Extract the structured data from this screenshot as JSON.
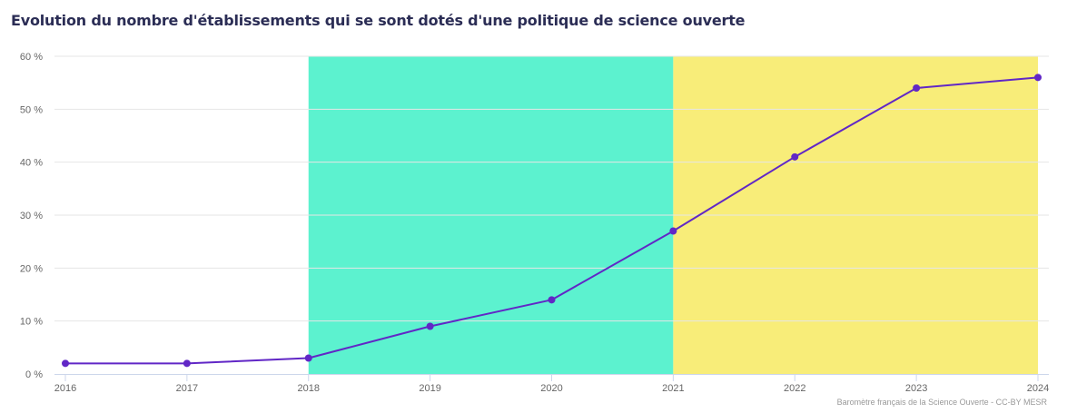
{
  "chart_data": {
    "type": "line",
    "title": "Evolution du nombre d'établissements qui se sont dotés d'une politique de science ouverte",
    "xlabel": "",
    "ylabel": "",
    "x": [
      2016,
      2017,
      2018,
      2019,
      2020,
      2021,
      2022,
      2023,
      2024
    ],
    "series": [
      {
        "values": [
          2,
          2,
          3,
          9,
          14,
          27,
          41,
          54,
          56
        ],
        "color": "#6127c6"
      }
    ],
    "ylim": [
      0,
      60
    ],
    "y_ticks": [
      0,
      10,
      20,
      30,
      40,
      50,
      60
    ],
    "y_tick_labels": [
      "0 %",
      "10 %",
      "20 %",
      "30 %",
      "40 %",
      "50 %",
      "60 %"
    ],
    "x_tick_labels": [
      "2016",
      "2017",
      "2018",
      "2019",
      "2020",
      "2021",
      "2022",
      "2023",
      "2024"
    ],
    "grid": true,
    "bands": [
      {
        "from": 2018,
        "to": 2021,
        "color": "#5cf2cf"
      },
      {
        "from": 2021,
        "to": 2024,
        "color": "#f8ed79"
      }
    ]
  },
  "credits": "Baromètre français de la Science Ouverte - CC-BY MESR"
}
